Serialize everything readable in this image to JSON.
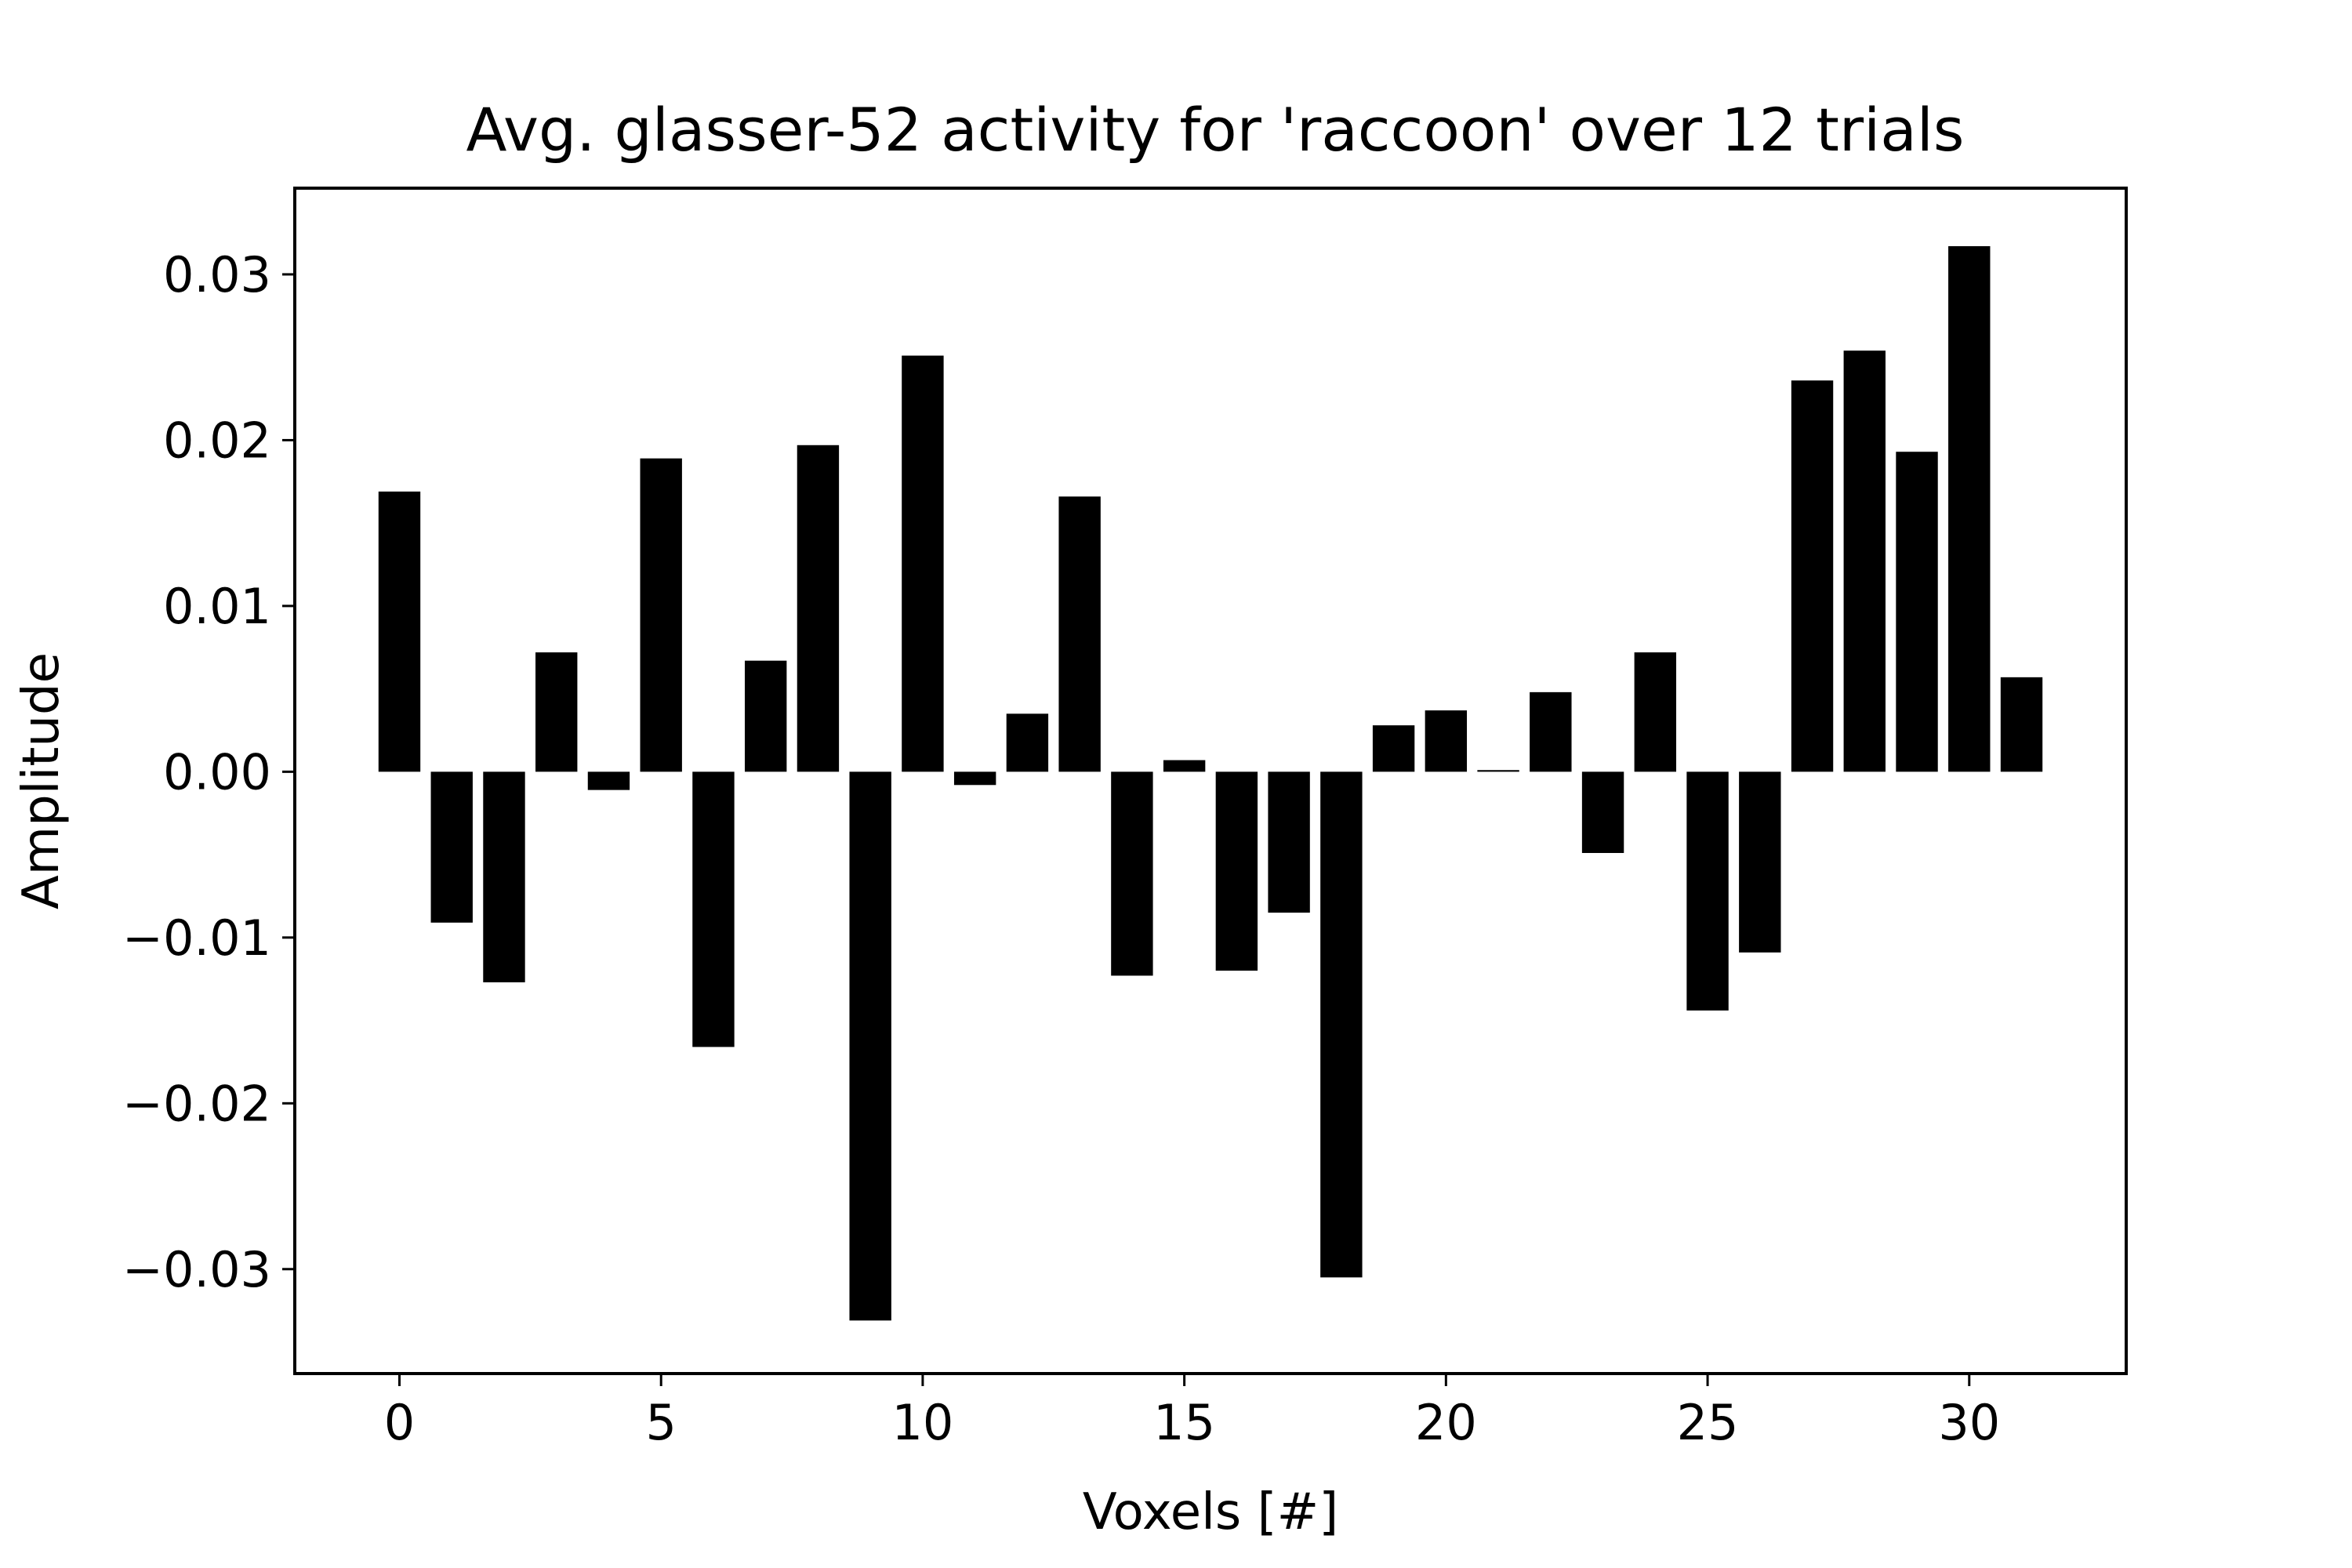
{
  "chart_data": {
    "type": "bar",
    "title": "Avg. glasser-52 activity for 'raccoon' over 12 trials",
    "xlabel": "Voxels [#]",
    "ylabel": "Amplitude",
    "x": [
      0,
      1,
      2,
      3,
      4,
      5,
      6,
      7,
      8,
      9,
      10,
      11,
      12,
      13,
      14,
      15,
      16,
      17,
      18,
      19,
      20,
      21,
      22,
      23,
      24,
      25,
      26,
      27,
      28,
      29,
      30,
      31
    ],
    "values": [
      0.0169,
      -0.0091,
      -0.0127,
      0.0072,
      -0.0011,
      0.0189,
      -0.0166,
      0.0067,
      0.0197,
      -0.0331,
      0.0251,
      -0.0008,
      0.0035,
      0.0166,
      -0.0123,
      0.0007,
      -0.012,
      -0.0085,
      -0.0305,
      0.0028,
      0.0037,
      0.0001,
      0.0048,
      -0.0049,
      0.0072,
      -0.0144,
      -0.0109,
      0.0236,
      0.0254,
      0.0193,
      0.0317,
      0.0057
    ],
    "xlim": [
      -2.0,
      33.0
    ],
    "ylim": [
      -0.0363,
      0.0352
    ],
    "x_ticks": [
      0,
      5,
      10,
      15,
      20,
      25,
      30
    ],
    "x_tick_labels": [
      "0",
      "5",
      "10",
      "15",
      "20",
      "25",
      "30"
    ],
    "y_ticks": [
      0.03,
      0.02,
      0.01,
      0.0,
      -0.01,
      -0.02,
      -0.03
    ],
    "y_tick_labels": [
      "0.03",
      "0.02",
      "0.01",
      "0.00",
      "−0.01",
      "−0.02",
      "−0.03"
    ],
    "bar_color": "#000000",
    "grid": false,
    "legend": "none"
  }
}
